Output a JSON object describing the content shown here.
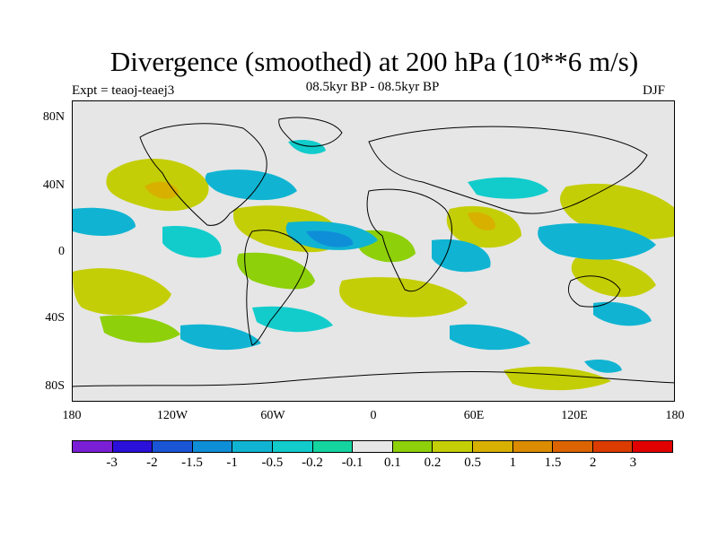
{
  "header": {
    "title": "Divergence (smoothed) at 200 hPa (10**6 m/s)",
    "subtitle": "08.5kyr BP - 08.5kyr BP",
    "experiment": "Expt = teaoj-teaej3",
    "season": "DJF"
  },
  "axes": {
    "lat_labels": [
      "80N",
      "40N",
      "0",
      "40S",
      "80S"
    ],
    "lon_labels": [
      "180",
      "120W",
      "60W",
      "0",
      "60E",
      "120E",
      "180"
    ]
  },
  "colorbar": {
    "colors": [
      "#7a1fd6",
      "#2a10d8",
      "#1a55d6",
      "#0f8ed8",
      "#10b4d2",
      "#12cccc",
      "#14d4a0",
      "#e6e6e6",
      "#8ed00a",
      "#c4ce06",
      "#d8b000",
      "#dc8c00",
      "#dc6400",
      "#dc3c00",
      "#e00000"
    ],
    "labels": [
      "-3",
      "-2",
      "-1.5",
      "-1",
      "-0.5",
      "-0.2",
      "-0.1",
      "0.1",
      "0.2",
      "0.5",
      "1",
      "1.5",
      "2",
      "3"
    ]
  },
  "legend_colors": {
    "positive": "#c4ce06",
    "positive_strong": "#d8b000",
    "negative": "#10b4d2",
    "negative_weak": "#14d4a0"
  }
}
